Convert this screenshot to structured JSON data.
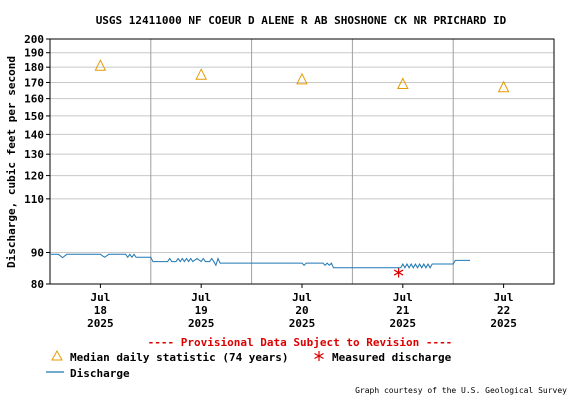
{
  "chart_data": {
    "type": "line",
    "title": "USGS 12411000 NF COEUR D ALENE R AB SHOSHONE CK NR PRICHARD ID",
    "ylabel": "Discharge, cubic feet per second",
    "xlabel": "",
    "y_scale": "log",
    "ylim": [
      80,
      200
    ],
    "y_ticks": [
      80,
      90,
      110,
      120,
      130,
      140,
      150,
      160,
      170,
      180,
      190,
      200
    ],
    "y_tick_labels": [
      "80",
      "90",
      "110",
      "120",
      "130",
      "140",
      "150",
      "160",
      "170",
      "180",
      "190",
      "200"
    ],
    "xlim": [
      "2025-07-17T12:00",
      "2025-07-22T12:00"
    ],
    "x_ticks": [
      {
        "x": "2025-07-18T00:00",
        "lines": [
          "Jul",
          "18",
          "2025"
        ]
      },
      {
        "x": "2025-07-19T00:00",
        "lines": [
          "Jul",
          "19",
          "2025"
        ]
      },
      {
        "x": "2025-07-20T00:00",
        "lines": [
          "Jul",
          "20",
          "2025"
        ]
      },
      {
        "x": "2025-07-21T00:00",
        "lines": [
          "Jul",
          "21",
          "2025"
        ]
      },
      {
        "x": "2025-07-22T00:00",
        "lines": [
          "Jul",
          "22",
          "2025"
        ]
      }
    ],
    "day_boundaries": [
      "2025-07-18T12:00",
      "2025-07-19T12:00",
      "2025-07-20T12:00",
      "2025-07-21T12:00"
    ],
    "grid": true,
    "series": [
      {
        "name": "Median daily statistic (74 years)",
        "kind": "marker-triangle",
        "color": "#e59a00",
        "points": [
          {
            "x": "2025-07-18T00:00",
            "y": 181
          },
          {
            "x": "2025-07-19T00:00",
            "y": 175
          },
          {
            "x": "2025-07-20T00:00",
            "y": 172
          },
          {
            "x": "2025-07-21T00:00",
            "y": 169
          },
          {
            "x": "2025-07-22T00:00",
            "y": 167
          }
        ]
      },
      {
        "name": "Measured discharge",
        "kind": "marker-asterisk",
        "color": "#dd0000",
        "points": [
          {
            "x": "2025-07-20T23:00",
            "y": 83.5
          }
        ]
      },
      {
        "name": "Discharge",
        "kind": "line",
        "color": "#1f77b4",
        "points": [
          {
            "x": "2025-07-17T12:00",
            "y": 89.4
          },
          {
            "x": "2025-07-17T14:00",
            "y": 89.4
          },
          {
            "x": "2025-07-17T15:00",
            "y": 88.3
          },
          {
            "x": "2025-07-17T16:00",
            "y": 89.4
          },
          {
            "x": "2025-07-18T00:00",
            "y": 89.4
          },
          {
            "x": "2025-07-18T01:00",
            "y": 88.4
          },
          {
            "x": "2025-07-18T02:00",
            "y": 89.4
          },
          {
            "x": "2025-07-18T06:00",
            "y": 89.4
          },
          {
            "x": "2025-07-18T06:30",
            "y": 88.4
          },
          {
            "x": "2025-07-18T07:00",
            "y": 89.4
          },
          {
            "x": "2025-07-18T07:30",
            "y": 88.4
          },
          {
            "x": "2025-07-18T08:00",
            "y": 89.4
          },
          {
            "x": "2025-07-18T08:30",
            "y": 88.4
          },
          {
            "x": "2025-07-18T09:00",
            "y": 88.4
          },
          {
            "x": "2025-07-18T12:00",
            "y": 88.4
          },
          {
            "x": "2025-07-18T12:30",
            "y": 87.0
          },
          {
            "x": "2025-07-18T16:00",
            "y": 87.0
          },
          {
            "x": "2025-07-18T16:30",
            "y": 88.0
          },
          {
            "x": "2025-07-18T17:00",
            "y": 87.0
          },
          {
            "x": "2025-07-18T18:00",
            "y": 87.0
          },
          {
            "x": "2025-07-18T18:30",
            "y": 88.0
          },
          {
            "x": "2025-07-18T19:00",
            "y": 87.0
          },
          {
            "x": "2025-07-18T19:30",
            "y": 88.0
          },
          {
            "x": "2025-07-18T20:00",
            "y": 87.0
          },
          {
            "x": "2025-07-18T20:30",
            "y": 88.0
          },
          {
            "x": "2025-07-18T21:00",
            "y": 87.0
          },
          {
            "x": "2025-07-18T21:30",
            "y": 88.0
          },
          {
            "x": "2025-07-18T22:00",
            "y": 87.0
          },
          {
            "x": "2025-07-18T23:00",
            "y": 88.0
          },
          {
            "x": "2025-07-19T00:00",
            "y": 87.0
          },
          {
            "x": "2025-07-19T00:30",
            "y": 88.0
          },
          {
            "x": "2025-07-19T01:00",
            "y": 87.0
          },
          {
            "x": "2025-07-19T02:00",
            "y": 87.0
          },
          {
            "x": "2025-07-19T02:30",
            "y": 88.0
          },
          {
            "x": "2025-07-19T03:00",
            "y": 87.0
          },
          {
            "x": "2025-07-19T03:30",
            "y": 85.8
          },
          {
            "x": "2025-07-19T04:00",
            "y": 88.0
          },
          {
            "x": "2025-07-19T04:30",
            "y": 86.5
          },
          {
            "x": "2025-07-20T00:00",
            "y": 86.5
          },
          {
            "x": "2025-07-20T00:30",
            "y": 85.8
          },
          {
            "x": "2025-07-20T01:00",
            "y": 86.5
          },
          {
            "x": "2025-07-20T05:00",
            "y": 86.5
          },
          {
            "x": "2025-07-20T05:30",
            "y": 85.8
          },
          {
            "x": "2025-07-20T06:00",
            "y": 86.5
          },
          {
            "x": "2025-07-20T06:30",
            "y": 85.8
          },
          {
            "x": "2025-07-20T07:00",
            "y": 86.5
          },
          {
            "x": "2025-07-20T07:30",
            "y": 85.0
          },
          {
            "x": "2025-07-20T22:00",
            "y": 85.0
          },
          {
            "x": "2025-07-20T23:30",
            "y": 85.0
          },
          {
            "x": "2025-07-21T00:00",
            "y": 86.2
          },
          {
            "x": "2025-07-21T00:30",
            "y": 85.0
          },
          {
            "x": "2025-07-21T01:00",
            "y": 86.2
          },
          {
            "x": "2025-07-21T01:30",
            "y": 85.0
          },
          {
            "x": "2025-07-21T02:00",
            "y": 86.2
          },
          {
            "x": "2025-07-21T02:30",
            "y": 85.0
          },
          {
            "x": "2025-07-21T03:00",
            "y": 86.2
          },
          {
            "x": "2025-07-21T03:30",
            "y": 85.0
          },
          {
            "x": "2025-07-21T04:00",
            "y": 86.2
          },
          {
            "x": "2025-07-21T04:30",
            "y": 85.0
          },
          {
            "x": "2025-07-21T05:00",
            "y": 86.2
          },
          {
            "x": "2025-07-21T05:30",
            "y": 85.0
          },
          {
            "x": "2025-07-21T06:00",
            "y": 86.2
          },
          {
            "x": "2025-07-21T06:30",
            "y": 85.0
          },
          {
            "x": "2025-07-21T07:00",
            "y": 86.2
          },
          {
            "x": "2025-07-21T07:30",
            "y": 86.2
          },
          {
            "x": "2025-07-21T12:00",
            "y": 86.2
          },
          {
            "x": "2025-07-21T12:30",
            "y": 87.4
          },
          {
            "x": "2025-07-21T16:00",
            "y": 87.4
          }
        ]
      }
    ],
    "provisional_note": "---- Provisional Data Subject to Revision ----",
    "legend": {
      "placement": "bottom",
      "items": [
        {
          "label": "Median daily statistic (74 years)",
          "symbol": "triangle"
        },
        {
          "label": "Measured discharge",
          "symbol": "asterisk"
        },
        {
          "label": "Discharge",
          "symbol": "line"
        }
      ]
    },
    "credit": "Graph courtesy of the U.S. Geological Survey"
  },
  "colors": {
    "background": "#ffffff",
    "plot_border": "#000000",
    "grid": "#c8c8c8",
    "day_divider": "#a0a0a0",
    "provisional": "#dd0000"
  }
}
